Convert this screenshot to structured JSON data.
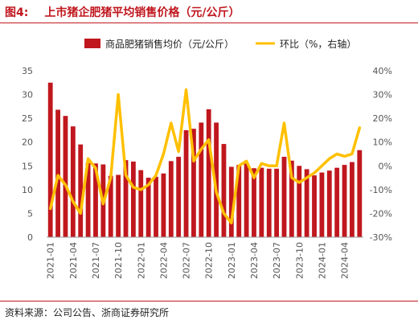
{
  "figure": {
    "number": "图4:",
    "title": "上市猪企肥猪平均销售价格（元/公斤）",
    "source": "资料来源：公司公告、浙商证券研究所"
  },
  "colors": {
    "bar": "#c0171e",
    "line": "#ffc000",
    "accent": "#c0171e"
  },
  "chart_data": {
    "type": "bar",
    "categories": [
      "2021-01",
      "2021-02",
      "2021-03",
      "2021-04",
      "2021-05",
      "2021-06",
      "2021-07",
      "2021-08",
      "2021-09",
      "2021-10",
      "2021-11",
      "2021-12",
      "2022-01",
      "2022-02",
      "2022-03",
      "2022-04",
      "2022-05",
      "2022-06",
      "2022-07",
      "2022-08",
      "2022-09",
      "2022-10",
      "2022-11",
      "2022-12",
      "2023-01",
      "2023-02",
      "2023-03",
      "2023-04",
      "2023-05",
      "2023-06",
      "2023-07",
      "2023-08",
      "2023-09",
      "2023-10",
      "2023-11",
      "2023-12",
      "2024-01",
      "2024-02",
      "2024-03",
      "2024-04",
      "2024-05",
      "2024-06"
    ],
    "x_tick_labels": [
      "2021-01",
      "2021-04",
      "2021-07",
      "2021-10",
      "2022-01",
      "2022-04",
      "2022-07",
      "2022-10",
      "2023-01",
      "2023-04",
      "2023-07",
      "2023-10",
      "2024-01",
      "2024-04"
    ],
    "series": [
      {
        "name": "商品肥猪销售均价（元/公斤）",
        "type": "bar",
        "axis": "left",
        "values": [
          32.5,
          26.8,
          25.5,
          23.3,
          19.5,
          15.6,
          15.5,
          15.3,
          12.9,
          13.1,
          16.2,
          15.9,
          14.1,
          12.5,
          12.7,
          13.4,
          16.0,
          16.9,
          22.5,
          22.8,
          24.1,
          26.9,
          24.1,
          19.6,
          14.8,
          15.2,
          15.5,
          14.5,
          14.6,
          14.4,
          14.4,
          16.9,
          16.1,
          15.0,
          14.3,
          13.0,
          13.6,
          14.0,
          14.6,
          15.2,
          15.8,
          18.3
        ]
      },
      {
        "name": "环比（%，右轴）",
        "type": "line",
        "axis": "right",
        "values": [
          -18,
          -4,
          -8,
          -15,
          -20,
          3,
          -1,
          -16,
          -5,
          30,
          -4,
          -9,
          -10,
          -8,
          -4,
          5,
          18,
          6,
          32,
          2,
          7,
          11,
          -11,
          -20,
          -24,
          0,
          2,
          -5,
          1,
          0,
          0,
          18,
          -5,
          -7,
          -5,
          -3,
          0,
          3,
          5,
          4,
          5,
          16
        ]
      }
    ],
    "y_left": {
      "min": 0,
      "max": 35,
      "ticks": [
        "0",
        "5",
        "10",
        "15",
        "20",
        "25",
        "30",
        "35"
      ]
    },
    "y_right": {
      "min": -30,
      "max": 40,
      "ticks": [
        "-30%",
        "-20%",
        "-10%",
        "0%",
        "10%",
        "20%",
        "30%",
        "40%"
      ]
    },
    "legend_position": "top",
    "grid": false
  }
}
